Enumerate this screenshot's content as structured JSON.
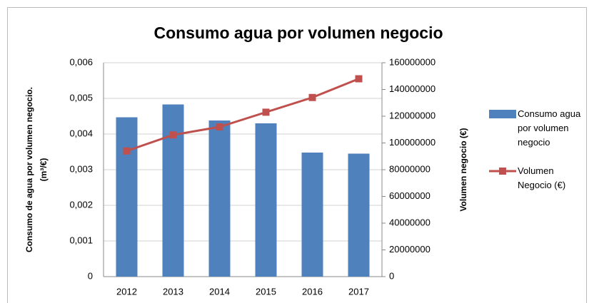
{
  "chart_data": {
    "type": "bar_line",
    "title": "Consumo agua por volumen negocio",
    "ylabel": [
      "Consumo de agua por volumen negocio.",
      "(m³/€)"
    ],
    "y2label": "Volumen negocio (€)",
    "categories": [
      "2012",
      "2013",
      "2014",
      "2015",
      "2016",
      "2017"
    ],
    "series": [
      {
        "name": "Consumo agua por volumen negocio",
        "type": "bar",
        "color": "#4f81bd",
        "axis": "y",
        "values": [
          0.00447,
          0.00483,
          0.00438,
          0.0043,
          0.00348,
          0.00345
        ]
      },
      {
        "name": "Volumen Negocio (€)",
        "type": "line",
        "color": "#c0504d",
        "axis": "y2",
        "values": [
          94000000,
          106000000,
          112000000,
          123000000,
          134000000,
          148000000
        ]
      }
    ],
    "ylim": [
      0,
      0.006
    ],
    "yticks": [
      0,
      {
        "value": 0.001,
        "label": "0,001"
      },
      {
        "value": 0.002,
        "label": "0,002"
      },
      {
        "value": 0.003,
        "label": "0,003"
      },
      {
        "value": 0.004,
        "label": "0,004"
      },
      {
        "value": 0.005,
        "label": "0,005"
      },
      {
        "value": 0.006,
        "label": "0,006"
      }
    ],
    "y2lim": [
      0,
      160000000
    ],
    "y2ticks": [
      0,
      20000000,
      40000000,
      60000000,
      80000000,
      100000000,
      120000000,
      140000000,
      160000000
    ],
    "grid": true,
    "legend": "right"
  }
}
